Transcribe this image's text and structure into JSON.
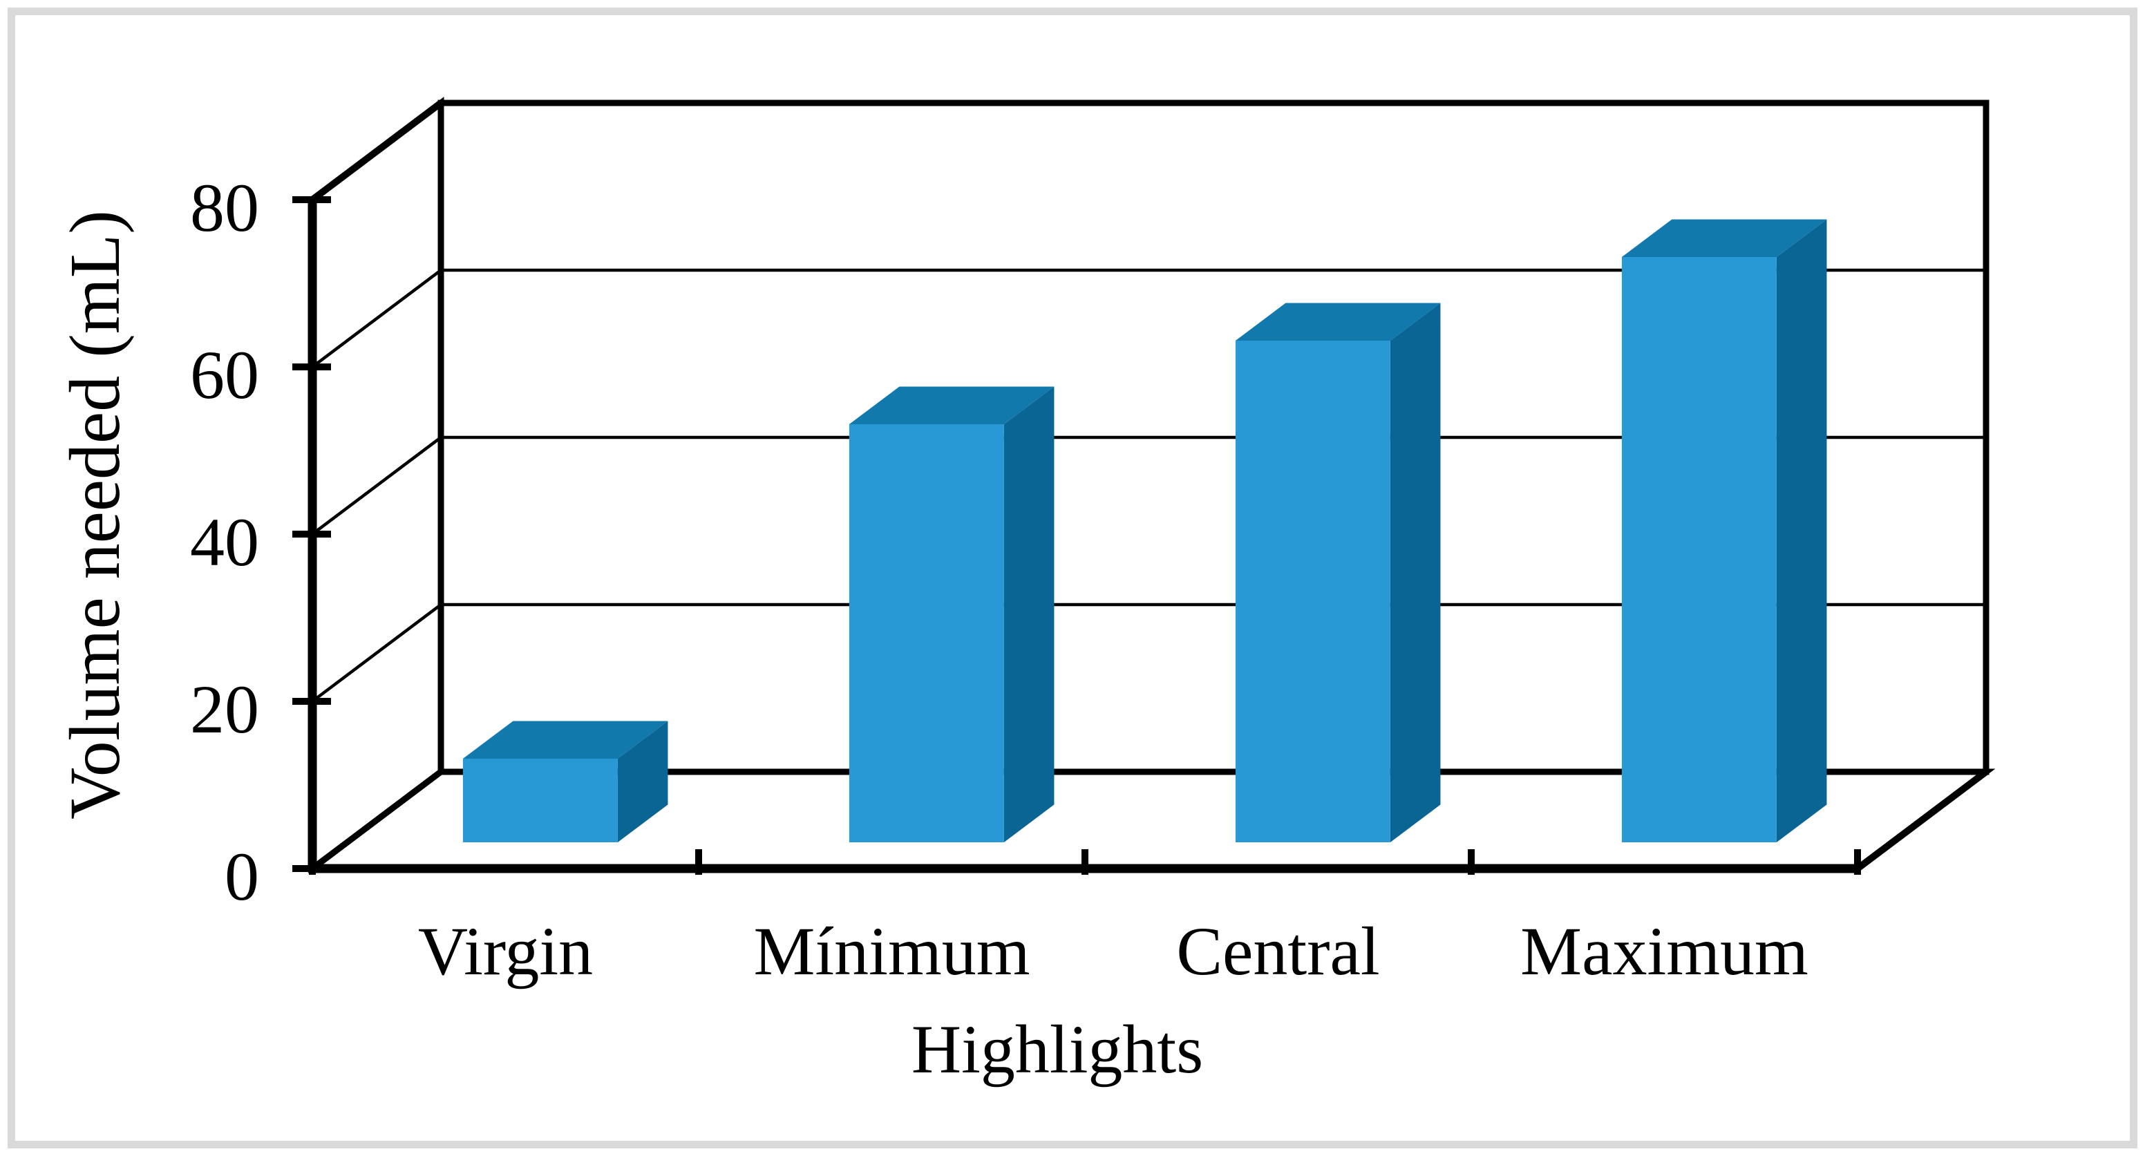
{
  "figure": {
    "background": "#ffffff",
    "border_color": "#d9d9d9"
  },
  "chart_data": {
    "type": "bar",
    "projection": "3d",
    "title": "",
    "xlabel": "Highlights",
    "ylabel": "Volume needed (mL)",
    "categories": [
      "Virgin",
      "Mínimum",
      "Central",
      "Maximum"
    ],
    "values": [
      10,
      50,
      60,
      70
    ],
    "series": [
      {
        "name": "Volume needed (mL)",
        "values": [
          10,
          50,
          60,
          70
        ]
      }
    ],
    "ylim": [
      0,
      80
    ],
    "y_ticks": [
      "0",
      "20",
      "40",
      "60",
      "80"
    ],
    "grid": true,
    "legend": false,
    "colors": {
      "bar_front": "#2999d6",
      "bar_top": "#1279ac",
      "bar_side": "#0a6594",
      "axis": "#000000",
      "gridline": "#000000",
      "text": "#000000",
      "wall_fill": "#ffffff"
    }
  }
}
